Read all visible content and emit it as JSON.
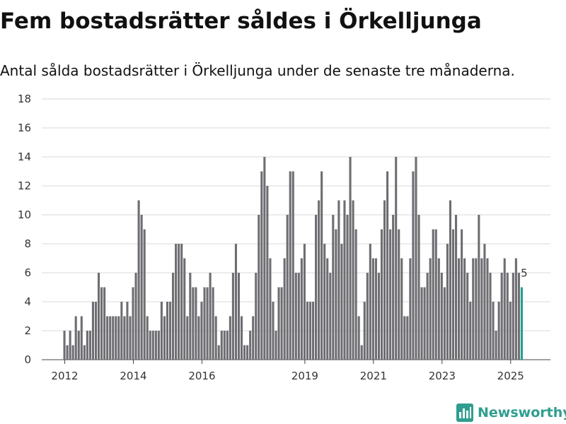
{
  "header": {
    "title": "Fem bostadsrätter såldes i Örkelljunga",
    "subtitle": "Antal sålda bostadsrätter i Örkelljunga under de senaste tre månaderna."
  },
  "branding": {
    "name": "Newsworthy",
    "icon": "bar-chart-logo-icon",
    "color": "#2f9e8f"
  },
  "colors": {
    "bar": "#6e6d72",
    "highlight": "#23a090",
    "grid": "#d9d9d9"
  },
  "chart_data": {
    "type": "bar",
    "title": "",
    "xlabel": "",
    "ylabel": "",
    "ylim": [
      0,
      18
    ],
    "y_ticks": [
      0,
      2,
      4,
      6,
      8,
      10,
      12,
      14,
      16,
      18
    ],
    "x_ticks": [
      {
        "label": "2012",
        "date": "2012-01"
      },
      {
        "label": "2014",
        "date": "2014-01"
      },
      {
        "label": "2016",
        "date": "2016-01"
      },
      {
        "label": "2019",
        "date": "2019-01"
      },
      {
        "label": "2021",
        "date": "2021-01"
      },
      {
        "label": "2023",
        "date": "2023-01"
      },
      {
        "label": "2025",
        "date": "2025-01"
      }
    ],
    "grid": true,
    "x_start": "2012-01",
    "frequency": "monthly",
    "annotation": {
      "label": "5",
      "date": "2025-05"
    },
    "series": [
      {
        "values": [
          2,
          1,
          2,
          1,
          3,
          2,
          3,
          1,
          2,
          2,
          4,
          4,
          6,
          5,
          5,
          3,
          3,
          3,
          3,
          3,
          4,
          3,
          4,
          3,
          5,
          6,
          11,
          10,
          9,
          3,
          2,
          2,
          2,
          2,
          4,
          3,
          4,
          4,
          6,
          8,
          8,
          8,
          7,
          3,
          6,
          5,
          5,
          3,
          4,
          5,
          5,
          6,
          5,
          3,
          1,
          2,
          2,
          2,
          3,
          6,
          8,
          6,
          3,
          1,
          1,
          2,
          3,
          6,
          10,
          13,
          14,
          12,
          7,
          4,
          2,
          5,
          5,
          7,
          10,
          13,
          13,
          6,
          6,
          7,
          8,
          4,
          4,
          4,
          10,
          11,
          13,
          8,
          7,
          6,
          10,
          9,
          11,
          8,
          11,
          10,
          14,
          11,
          9,
          3,
          1,
          4,
          6,
          8,
          7,
          7,
          6,
          9,
          11,
          13,
          9,
          10,
          14,
          9,
          7,
          3,
          3,
          7,
          13,
          14,
          10,
          5,
          5,
          6,
          7,
          9,
          9,
          7,
          6,
          5,
          8,
          11,
          9,
          10,
          7,
          9,
          7,
          6,
          4,
          7,
          7,
          10,
          7,
          8,
          7,
          6,
          4,
          2,
          4,
          6,
          7,
          6,
          4,
          6,
          7,
          6,
          5
        ],
        "highlight_last": true
      }
    ]
  }
}
